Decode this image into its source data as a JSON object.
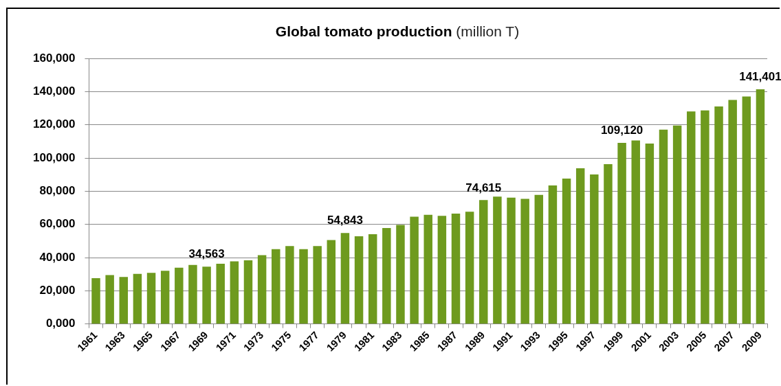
{
  "chart_data": {
    "type": "bar",
    "title": "Global tomato production (million T)",
    "categories": [
      "1961",
      null,
      "1963",
      null,
      "1965",
      null,
      "1967",
      null,
      "1969",
      null,
      "1971",
      null,
      "1973",
      null,
      "1975",
      null,
      "1977",
      null,
      "1979",
      null,
      "1981",
      null,
      "1983",
      null,
      "1985",
      null,
      "1987",
      null,
      "1989",
      null,
      "1991",
      null,
      "1993",
      null,
      "1995",
      null,
      "1997",
      null,
      "1999",
      null,
      "2001",
      null,
      "2003",
      null,
      "2005",
      null,
      "2007",
      null,
      "2009"
    ],
    "values": [
      27600,
      29500,
      28300,
      30200,
      30800,
      32000,
      33900,
      35600,
      34563,
      36300,
      37700,
      38300,
      41400,
      45100,
      46900,
      45100,
      46900,
      50600,
      54843,
      52800,
      54100,
      57800,
      59700,
      64600,
      65800,
      65100,
      66500,
      67600,
      74615,
      76700,
      76100,
      75400,
      77800,
      83500,
      87600,
      93800,
      90100,
      96300,
      109120,
      110600,
      108700,
      117100,
      119600,
      128000,
      128700,
      131000,
      135000,
      137000,
      141401
    ],
    "value_labels": [
      null,
      null,
      null,
      null,
      null,
      null,
      null,
      null,
      "34,563",
      null,
      null,
      null,
      null,
      null,
      null,
      null,
      null,
      null,
      "54,843",
      null,
      null,
      null,
      null,
      null,
      null,
      null,
      null,
      null,
      "74,615",
      null,
      null,
      null,
      null,
      null,
      null,
      null,
      null,
      null,
      "109,120",
      null,
      null,
      null,
      null,
      null,
      null,
      null,
      null,
      null,
      "141,401"
    ],
    "color": "#6e9a1e",
    "ylim": [
      0,
      160000
    ],
    "yticks": [
      {
        "value": 0,
        "label": "0,000"
      },
      {
        "value": 20000,
        "label": "20,000"
      },
      {
        "value": 40000,
        "label": "40,000"
      },
      {
        "value": 60000,
        "label": "60,000"
      },
      {
        "value": 80000,
        "label": "80,000"
      },
      {
        "value": 100000,
        "label": "100,000"
      },
      {
        "value": 120000,
        "label": "120,000"
      },
      {
        "value": 140000,
        "label": "140,000"
      },
      {
        "value": 160000,
        "label": "160,000"
      }
    ],
    "grid": "y"
  }
}
